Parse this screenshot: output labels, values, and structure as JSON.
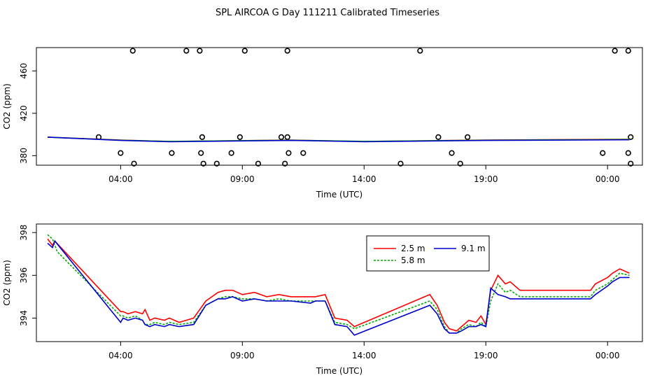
{
  "page": {
    "title": "SPL AIRCOA G  Day 111211  Calibrated Timeseries"
  },
  "chart_data": [
    {
      "type": "scatter+line",
      "title": "",
      "xlabel": "Time (UTC)",
      "ylabel": "CO2 (ppm)",
      "xlim": [
        0,
        24
      ],
      "ylim": [
        371,
        482
      ],
      "x_ticks": [
        {
          "v": 3,
          "label": "04:00"
        },
        {
          "v": 8,
          "label": "09:00"
        },
        {
          "v": 13,
          "label": "14:00"
        },
        {
          "v": 18,
          "label": "19:00"
        },
        {
          "v": 23,
          "label": "00:00"
        }
      ],
      "y_ticks": [
        {
          "v": 380,
          "label": "380"
        },
        {
          "v": 420,
          "label": "420"
        },
        {
          "v": 460,
          "label": "460"
        }
      ],
      "points": [
        [
          3.5,
          479
        ],
        [
          5.7,
          479
        ],
        [
          6.25,
          479
        ],
        [
          8.1,
          479
        ],
        [
          9.85,
          479
        ],
        [
          15.3,
          479
        ],
        [
          23.3,
          479
        ],
        [
          23.85,
          479
        ],
        [
          2.1,
          397.5
        ],
        [
          6.35,
          397.5
        ],
        [
          7.9,
          397.5
        ],
        [
          9.6,
          397.5
        ],
        [
          9.85,
          397.5
        ],
        [
          16.05,
          397.5
        ],
        [
          17.25,
          397.5
        ],
        [
          23.95,
          397.5
        ],
        [
          3.0,
          382.5
        ],
        [
          5.1,
          382.5
        ],
        [
          6.3,
          382.5
        ],
        [
          7.55,
          382.5
        ],
        [
          9.9,
          382.5
        ],
        [
          10.5,
          382.5
        ],
        [
          16.6,
          382.5
        ],
        [
          22.8,
          382.5
        ],
        [
          23.85,
          382.5
        ],
        [
          3.55,
          372.5
        ],
        [
          6.4,
          372.5
        ],
        [
          6.95,
          372.5
        ],
        [
          8.65,
          372.5
        ],
        [
          9.75,
          372.5
        ],
        [
          14.5,
          372.5
        ],
        [
          16.95,
          372.5
        ],
        [
          23.95,
          372.5
        ]
      ],
      "series": [
        {
          "name": "2.5 m",
          "color": "#ff0000",
          "x": [
            0,
            3,
            5,
            10,
            13,
            18,
            23.9
          ],
          "y": [
            397.5,
            394.8,
            393.4,
            394.8,
            393.4,
            394.8,
            395.5
          ]
        },
        {
          "name": "5.8 m",
          "color": "#00cc00",
          "x": [
            0,
            3,
            5,
            10,
            13,
            18,
            23.9
          ],
          "y": [
            397.5,
            394.6,
            393.5,
            394.6,
            393.5,
            394.6,
            395.3
          ]
        },
        {
          "name": "9.1 m",
          "color": "#0000cc",
          "x": [
            0,
            3,
            5,
            10,
            13,
            18,
            23.9
          ],
          "y": [
            397.5,
            394.4,
            393.2,
            394.4,
            393.2,
            394.4,
            395.0
          ]
        }
      ]
    },
    {
      "type": "line",
      "title": "",
      "xlabel": "Time (UTC)",
      "ylabel": "CO2 (ppm)",
      "xlim": [
        0,
        24
      ],
      "ylim": [
        392.9,
        398.4
      ],
      "x_ticks": [
        {
          "v": 3,
          "label": "04:00"
        },
        {
          "v": 8,
          "label": "09:00"
        },
        {
          "v": 13,
          "label": "14:00"
        },
        {
          "v": 18,
          "label": "19:00"
        },
        {
          "v": 23,
          "label": "00:00"
        }
      ],
      "y_ticks": [
        {
          "v": 394,
          "label": "394"
        },
        {
          "v": 396,
          "label": "396"
        },
        {
          "v": 398,
          "label": "398"
        }
      ],
      "legend": {
        "position": "top-right-inset",
        "entries": [
          "2.5 m",
          "9.1 m",
          "5.8 m"
        ]
      },
      "series": [
        {
          "name": "2.5 m",
          "color": "#ff0000",
          "dash": "",
          "x": [
            0,
            0.2,
            0.3,
            3.0,
            3.1,
            3.3,
            3.6,
            3.9,
            4.0,
            4.2,
            4.4,
            4.8,
            5.0,
            5.4,
            6.0,
            6.5,
            7.0,
            7.3,
            7.6,
            8.0,
            8.5,
            9.0,
            9.5,
            10.0,
            10.8,
            11.0,
            11.4,
            11.8,
            12.3,
            12.6,
            15.7,
            16.0,
            16.3,
            16.5,
            16.8,
            17.0,
            17.3,
            17.6,
            17.8,
            18.0,
            18.2,
            18.5,
            18.8,
            19.0,
            19.4,
            20.0,
            21.5,
            22.3,
            22.5,
            23.0,
            23.2,
            23.5,
            23.9
          ],
          "y": [
            397.7,
            397.4,
            397.6,
            394.3,
            394.3,
            394.2,
            394.3,
            394.2,
            394.4,
            393.9,
            394.0,
            393.9,
            394.0,
            393.8,
            394.0,
            394.8,
            395.2,
            395.3,
            395.3,
            395.1,
            395.2,
            395.0,
            395.1,
            395.0,
            395.0,
            395.0,
            395.1,
            394.0,
            393.9,
            393.6,
            395.1,
            394.6,
            393.8,
            393.5,
            393.4,
            393.6,
            393.9,
            393.8,
            394.1,
            393.7,
            395.3,
            396.0,
            395.6,
            395.7,
            395.3,
            395.3,
            395.3,
            395.3,
            395.6,
            395.9,
            396.1,
            396.3,
            396.1
          ]
        },
        {
          "name": "5.8 m",
          "color": "#00aa00",
          "dash": "3,2",
          "x": [
            0,
            0.2,
            0.4,
            3.0,
            3.1,
            3.3,
            3.6,
            3.9,
            4.0,
            4.2,
            4.4,
            4.8,
            5.0,
            5.4,
            6.0,
            6.5,
            7.0,
            7.3,
            7.6,
            8.0,
            8.5,
            9.0,
            9.5,
            10.0,
            10.8,
            11.0,
            11.4,
            11.8,
            12.3,
            12.6,
            15.7,
            16.0,
            16.3,
            16.5,
            16.8,
            17.0,
            17.3,
            17.6,
            17.8,
            18.0,
            18.2,
            18.5,
            18.8,
            19.0,
            19.4,
            20.0,
            21.5,
            22.3,
            22.5,
            23.0,
            23.2,
            23.5,
            23.9
          ],
          "y": [
            397.9,
            397.7,
            397.1,
            394.1,
            394.1,
            394.0,
            394.1,
            393.9,
            393.7,
            393.7,
            393.8,
            393.7,
            393.8,
            393.7,
            393.8,
            394.6,
            394.9,
            395.0,
            395.0,
            394.9,
            394.9,
            394.8,
            394.9,
            394.8,
            394.8,
            394.8,
            394.8,
            393.8,
            393.7,
            393.5,
            394.8,
            394.4,
            393.6,
            393.3,
            393.3,
            393.5,
            393.7,
            393.6,
            393.8,
            393.6,
            394.8,
            395.6,
            395.2,
            395.3,
            395.0,
            395.0,
            395.0,
            395.0,
            395.3,
            395.6,
            395.8,
            396.1,
            396.0
          ]
        },
        {
          "name": "9.1 m",
          "color": "#0000cc",
          "dash": "",
          "x": [
            0,
            0.2,
            0.3,
            3.0,
            3.1,
            3.3,
            3.6,
            3.9,
            4.0,
            4.2,
            4.4,
            4.8,
            5.0,
            5.4,
            6.0,
            6.5,
            7.0,
            7.3,
            7.6,
            8.0,
            8.5,
            9.0,
            9.5,
            10.0,
            10.8,
            11.0,
            11.4,
            11.8,
            12.3,
            12.6,
            15.7,
            16.0,
            16.3,
            16.5,
            16.8,
            17.0,
            17.3,
            17.6,
            17.8,
            18.0,
            18.2,
            18.5,
            18.8,
            19.0,
            19.4,
            20.0,
            21.5,
            22.3,
            22.5,
            23.0,
            23.2,
            23.5,
            23.9
          ],
          "y": [
            397.5,
            397.3,
            397.6,
            393.8,
            394.0,
            393.9,
            394.0,
            393.9,
            393.7,
            393.6,
            393.7,
            393.6,
            393.7,
            393.6,
            393.7,
            394.6,
            394.9,
            394.9,
            395.0,
            394.8,
            394.9,
            394.8,
            394.8,
            394.8,
            394.7,
            394.8,
            394.8,
            393.7,
            393.6,
            393.2,
            394.6,
            394.2,
            393.5,
            393.3,
            393.3,
            393.4,
            393.6,
            393.6,
            393.7,
            393.6,
            395.4,
            395.1,
            395.0,
            394.9,
            394.9,
            394.9,
            394.9,
            394.9,
            395.1,
            395.5,
            395.7,
            395.9,
            395.9
          ]
        }
      ]
    }
  ]
}
